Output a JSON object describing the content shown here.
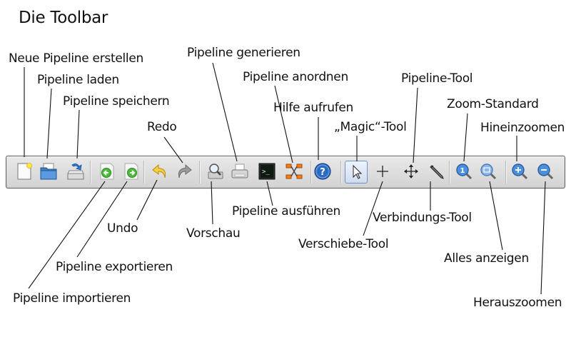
{
  "title": "Die Toolbar",
  "labels": {
    "neue_pipeline": "Neue Pipeline erstellen",
    "pipeline_laden": "Pipeline laden",
    "pipeline_speichern": "Pipeline speichern",
    "redo": "Redo",
    "pipeline_generieren": "Pipeline generieren",
    "pipeline_anordnen": "Pipeline anordnen",
    "hilfe_aufrufen": "Hilfe aufrufen",
    "magic_tool": "„Magic“-Tool",
    "pipeline_tool": "Pipeline-Tool",
    "zoom_standard": "Zoom-Standard",
    "hineinzoomen": "Hineinzoomen",
    "undo": "Undo",
    "pipeline_exportieren": "Pipeline exportieren",
    "pipeline_importieren": "Pipeline importieren",
    "vorschau": "Vorschau",
    "pipeline_ausfuehren": "Pipeline ausführen",
    "verschiebe_tool": "Verschiebe-Tool",
    "verbindungs_tool": "Verbindungs-Tool",
    "alles_anzeigen": "Alles anzeigen",
    "herauszoomen": "Herauszoomen"
  },
  "toolbar": {
    "buttons": [
      {
        "id": "new",
        "icon": "new-document-icon"
      },
      {
        "id": "open",
        "icon": "folder-open-icon"
      },
      {
        "id": "save",
        "icon": "save-disk-icon"
      },
      {
        "id": "import",
        "icon": "arrow-left-green-icon"
      },
      {
        "id": "export",
        "icon": "arrow-right-green-icon"
      },
      {
        "id": "undo",
        "icon": "undo-arrow-icon"
      },
      {
        "id": "redo",
        "icon": "redo-arrow-icon"
      },
      {
        "id": "preview",
        "icon": "preview-magnifier-icon"
      },
      {
        "id": "generate",
        "icon": "printer-icon"
      },
      {
        "id": "run",
        "icon": "terminal-icon"
      },
      {
        "id": "arrange",
        "icon": "arrange-nodes-icon"
      },
      {
        "id": "help",
        "icon": "help-question-icon"
      },
      {
        "id": "magic",
        "icon": "pointer-arrow-icon",
        "selected": true
      },
      {
        "id": "move",
        "icon": "plus-cross-icon"
      },
      {
        "id": "pipeline_tool",
        "icon": "move-arrows-icon"
      },
      {
        "id": "connect",
        "icon": "pen-connect-icon"
      },
      {
        "id": "zoom_default",
        "icon": "zoom-default-icon"
      },
      {
        "id": "zoom_all",
        "icon": "zoom-fit-icon"
      },
      {
        "id": "zoom_in",
        "icon": "zoom-in-icon"
      },
      {
        "id": "zoom_out",
        "icon": "zoom-out-icon"
      }
    ]
  }
}
